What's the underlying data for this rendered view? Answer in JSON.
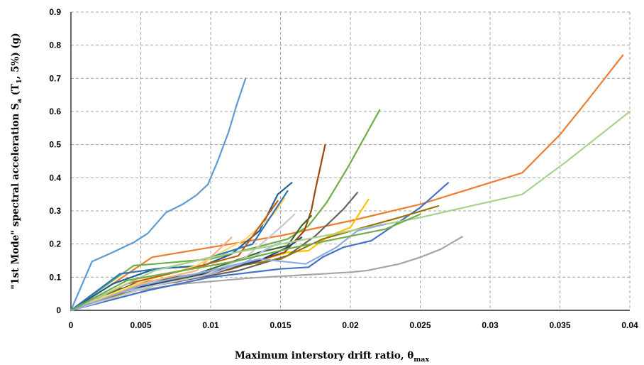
{
  "chart_data": {
    "type": "line",
    "title": "",
    "xlabel": {
      "main": "Maximum interstory drift ratio, θ",
      "sub": "max"
    },
    "ylabel": {
      "p1": "\"1st Mode\" spectral acceleration S",
      "sub1": "a",
      "p2": " (T",
      "sub2": "1",
      "p3": ", 5%) (g)"
    },
    "xlim": [
      0,
      0.04
    ],
    "ylim": [
      0,
      0.9
    ],
    "x_ticks": [
      "0",
      "0.005",
      "0.01",
      "0.015",
      "0.02",
      "0.025",
      "0.03",
      "0.035",
      "0.04"
    ],
    "y_ticks": [
      "0",
      "0.1",
      "0.2",
      "0.3",
      "0.4",
      "0.5",
      "0.6",
      "0.7",
      "0.8",
      "0.9"
    ],
    "grid": true,
    "legend": "none",
    "series": [
      {
        "color": "#5B9BD5",
        "points": [
          [
            0,
            0
          ],
          [
            0.0015,
            0.147
          ],
          [
            0.003,
            0.175
          ],
          [
            0.0045,
            0.205
          ],
          [
            0.0055,
            0.232
          ],
          [
            0.0068,
            0.295
          ],
          [
            0.008,
            0.32
          ],
          [
            0.009,
            0.348
          ],
          [
            0.0098,
            0.38
          ],
          [
            0.0105,
            0.45
          ],
          [
            0.0113,
            0.54
          ],
          [
            0.0118,
            0.612
          ],
          [
            0.0125,
            0.7
          ]
        ]
      },
      {
        "color": "#ED7D31",
        "points": [
          [
            0,
            0
          ],
          [
            0.003,
            0.08
          ],
          [
            0.0058,
            0.16
          ],
          [
            0.01,
            0.19
          ],
          [
            0.015,
            0.225
          ],
          [
            0.02,
            0.27
          ],
          [
            0.025,
            0.32
          ],
          [
            0.0323,
            0.415
          ],
          [
            0.035,
            0.53
          ],
          [
            0.037,
            0.635
          ],
          [
            0.0395,
            0.77
          ]
        ]
      },
      {
        "color": "#A5A5A5",
        "points": [
          [
            0,
            0
          ],
          [
            0.004,
            0.055
          ],
          [
            0.008,
            0.08
          ],
          [
            0.013,
            0.098
          ],
          [
            0.016,
            0.105
          ],
          [
            0.02,
            0.115
          ],
          [
            0.0212,
            0.12
          ],
          [
            0.0235,
            0.14
          ],
          [
            0.025,
            0.16
          ],
          [
            0.0265,
            0.185
          ],
          [
            0.028,
            0.222
          ]
        ]
      },
      {
        "color": "#FFC000",
        "points": [
          [
            0,
            0
          ],
          [
            0.005,
            0.075
          ],
          [
            0.01,
            0.11
          ],
          [
            0.0135,
            0.15
          ],
          [
            0.0155,
            0.175
          ],
          [
            0.017,
            0.18
          ],
          [
            0.0185,
            0.225
          ],
          [
            0.02,
            0.25
          ],
          [
            0.0213,
            0.335
          ]
        ]
      },
      {
        "color": "#4472C4",
        "points": [
          [
            0,
            0
          ],
          [
            0.0055,
            0.06
          ],
          [
            0.01,
            0.1
          ],
          [
            0.015,
            0.125
          ],
          [
            0.017,
            0.13
          ],
          [
            0.018,
            0.16
          ],
          [
            0.0195,
            0.19
          ],
          [
            0.0215,
            0.21
          ],
          [
            0.025,
            0.31
          ],
          [
            0.027,
            0.385
          ]
        ]
      },
      {
        "color": "#70AD47",
        "points": [
          [
            0,
            0
          ],
          [
            0.0045,
            0.135
          ],
          [
            0.006,
            0.14
          ],
          [
            0.01,
            0.155
          ],
          [
            0.0155,
            0.215
          ],
          [
            0.017,
            0.255
          ],
          [
            0.0183,
            0.325
          ],
          [
            0.0198,
            0.43
          ],
          [
            0.0221,
            0.605
          ]
        ]
      },
      {
        "color": "#255E91",
        "points": [
          [
            0,
            0
          ],
          [
            0.003,
            0.08
          ],
          [
            0.006,
            0.125
          ],
          [
            0.0095,
            0.135
          ],
          [
            0.0115,
            0.17
          ],
          [
            0.0135,
            0.24
          ],
          [
            0.0148,
            0.35
          ],
          [
            0.0158,
            0.385
          ]
        ]
      },
      {
        "color": "#9E480E",
        "points": [
          [
            0,
            0
          ],
          [
            0.0035,
            0.065
          ],
          [
            0.0075,
            0.085
          ],
          [
            0.0115,
            0.125
          ],
          [
            0.0153,
            0.175
          ],
          [
            0.0167,
            0.24
          ],
          [
            0.0172,
            0.3
          ],
          [
            0.0175,
            0.365
          ],
          [
            0.0182,
            0.5
          ]
        ]
      },
      {
        "color": "#636363",
        "points": [
          [
            0,
            0
          ],
          [
            0.004,
            0.06
          ],
          [
            0.008,
            0.09
          ],
          [
            0.012,
            0.12
          ],
          [
            0.0155,
            0.165
          ],
          [
            0.0175,
            0.225
          ],
          [
            0.0195,
            0.305
          ],
          [
            0.0205,
            0.355
          ]
        ]
      },
      {
        "color": "#997300",
        "points": [
          [
            0,
            0
          ],
          [
            0.005,
            0.07
          ],
          [
            0.01,
            0.12
          ],
          [
            0.015,
            0.155
          ],
          [
            0.018,
            0.215
          ],
          [
            0.0205,
            0.245
          ],
          [
            0.0235,
            0.28
          ],
          [
            0.0263,
            0.315
          ]
        ]
      },
      {
        "color": "#264478",
        "points": [
          [
            0,
            0
          ],
          [
            0.0035,
            0.06
          ],
          [
            0.008,
            0.095
          ],
          [
            0.0135,
            0.15
          ],
          [
            0.0155,
            0.19
          ],
          [
            0.0165,
            0.22
          ]
        ]
      },
      {
        "color": "#43682B",
        "points": [
          [
            0,
            0
          ],
          [
            0.0045,
            0.08
          ],
          [
            0.009,
            0.11
          ],
          [
            0.0135,
            0.175
          ],
          [
            0.0155,
            0.195
          ],
          [
            0.0165,
            0.255
          ],
          [
            0.0172,
            0.285
          ]
        ]
      },
      {
        "color": "#9DC3E6",
        "points": [
          [
            0,
            0
          ],
          [
            0.002,
            0.04
          ],
          [
            0.006,
            0.075
          ],
          [
            0.01,
            0.11
          ],
          [
            0.0125,
            0.145
          ],
          [
            0.014,
            0.185
          ],
          [
            0.015,
            0.205
          ]
        ]
      },
      {
        "color": "#F4B183",
        "points": [
          [
            0,
            0
          ],
          [
            0.005,
            0.08
          ],
          [
            0.009,
            0.12
          ],
          [
            0.0115,
            0.22
          ]
        ]
      },
      {
        "color": "#C9C9C9",
        "points": [
          [
            0,
            0
          ],
          [
            0.006,
            0.075
          ],
          [
            0.0095,
            0.105
          ],
          [
            0.0125,
            0.16
          ],
          [
            0.015,
            0.25
          ],
          [
            0.016,
            0.29
          ]
        ]
      },
      {
        "color": "#FFD966",
        "points": [
          [
            0,
            0
          ],
          [
            0.005,
            0.085
          ],
          [
            0.009,
            0.135
          ],
          [
            0.0125,
            0.215
          ],
          [
            0.0145,
            0.29
          ],
          [
            0.0153,
            0.338
          ]
        ]
      },
      {
        "color": "#2E75B6",
        "points": [
          [
            0,
            0
          ],
          [
            0.0035,
            0.11
          ],
          [
            0.007,
            0.13
          ],
          [
            0.01,
            0.16
          ],
          [
            0.013,
            0.2
          ],
          [
            0.0155,
            0.36
          ]
        ]
      },
      {
        "color": "#C55A11",
        "points": [
          [
            0,
            0
          ],
          [
            0.004,
            0.08
          ],
          [
            0.0085,
            0.125
          ],
          [
            0.012,
            0.165
          ],
          [
            0.0148,
            0.33
          ]
        ]
      },
      {
        "color": "#A9D18E",
        "points": [
          [
            0,
            0
          ],
          [
            0.006,
            0.12
          ],
          [
            0.01,
            0.16
          ],
          [
            0.015,
            0.2
          ],
          [
            0.02,
            0.24
          ],
          [
            0.025,
            0.28
          ],
          [
            0.0323,
            0.35
          ],
          [
            0.0355,
            0.45
          ],
          [
            0.04,
            0.6
          ]
        ]
      },
      {
        "color": "#8FAADC",
        "points": [
          [
            0,
            0
          ],
          [
            0.005,
            0.075
          ],
          [
            0.01,
            0.12
          ],
          [
            0.0135,
            0.155
          ],
          [
            0.0168,
            0.14
          ],
          [
            0.019,
            0.19
          ],
          [
            0.0205,
            0.24
          ],
          [
            0.0225,
            0.26
          ]
        ]
      },
      {
        "color": "#70AD47",
        "points": [
          [
            0,
            0
          ],
          [
            0.004,
            0.09
          ],
          [
            0.008,
            0.12
          ],
          [
            0.012,
            0.15
          ],
          [
            0.016,
            0.19
          ],
          [
            0.0225,
            0.245
          ],
          [
            0.025,
            0.29
          ]
        ]
      }
    ]
  }
}
